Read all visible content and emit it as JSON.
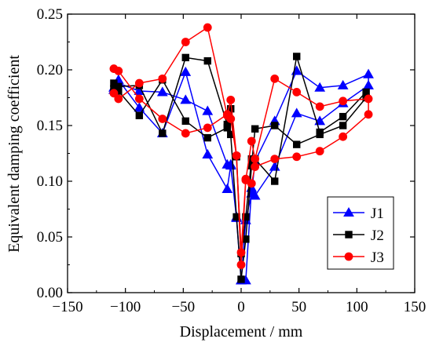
{
  "chart_data": {
    "type": "line",
    "xlabel": "Displacement / mm",
    "ylabel": "Equivalent damping coefficient",
    "xlim": [
      -150,
      150
    ],
    "ylim": [
      0.0,
      0.25
    ],
    "xticks": [
      -150,
      -100,
      -50,
      0,
      50,
      100,
      150
    ],
    "yticks": [
      "0.00",
      "0.05",
      "0.10",
      "0.15",
      "0.20",
      "0.25"
    ],
    "grid": false,
    "legend": "bottom-right",
    "series": [
      {
        "name": "J1",
        "marker": "triangle",
        "color": "#0000ff",
        "x": [
          -110,
          -106,
          -88,
          -68,
          -48,
          -29,
          -12,
          -9,
          -4,
          0,
          4,
          9,
          12,
          29,
          48,
          68,
          88,
          110,
          110,
          88,
          68,
          48,
          29,
          12,
          9,
          4,
          0,
          -4,
          -9,
          -12,
          -29,
          -48,
          -68,
          -88,
          -106,
          -110
        ],
        "y": [
          0.184,
          0.191,
          0.166,
          0.143,
          0.198,
          0.124,
          0.093,
          0.114,
          0.067,
          0.011,
          0.065,
          0.089,
          0.118,
          0.154,
          0.199,
          0.184,
          0.186,
          0.196,
          0.186,
          0.17,
          0.154,
          0.161,
          0.113,
          0.087,
          0.094,
          0.011,
          0.011,
          0.068,
          0.115,
          0.115,
          0.163,
          0.173,
          0.18,
          0.181,
          0.188,
          0.182
        ]
      },
      {
        "name": "J2",
        "marker": "square",
        "color": "#000000",
        "x": [
          -110,
          -106,
          -88,
          -68,
          -48,
          -29,
          -12,
          -9,
          -4,
          0,
          4,
          9,
          12,
          29,
          48,
          68,
          88,
          108,
          108,
          88,
          68,
          48,
          29,
          12,
          9,
          4,
          0,
          -4,
          -9,
          -12,
          -29,
          -48,
          -68,
          -88,
          -106,
          -110
        ],
        "y": [
          0.188,
          0.181,
          0.159,
          0.191,
          0.154,
          0.139,
          0.148,
          0.165,
          0.122,
          0.035,
          0.068,
          0.12,
          0.12,
          0.1,
          0.212,
          0.144,
          0.158,
          0.18,
          0.175,
          0.15,
          0.142,
          0.133,
          0.15,
          0.147,
          0.114,
          0.048,
          0.012,
          0.068,
          0.142,
          0.151,
          0.208,
          0.211,
          0.143,
          0.186,
          0.185,
          0.183
        ]
      },
      {
        "name": "J3",
        "marker": "circle",
        "color": "#ff0000",
        "x": [
          -110,
          -106,
          -88,
          -68,
          -48,
          -29,
          -12,
          -9,
          -4,
          0,
          4,
          9,
          12,
          29,
          48,
          68,
          88,
          110,
          110,
          88,
          68,
          48,
          29,
          12,
          9,
          4,
          0,
          -4,
          -9,
          -12,
          -29,
          -48,
          -68,
          -88,
          -106,
          -110
        ],
        "y": [
          0.201,
          0.199,
          0.174,
          0.156,
          0.143,
          0.148,
          0.16,
          0.156,
          0.123,
          0.025,
          0.101,
          0.136,
          0.12,
          0.192,
          0.18,
          0.167,
          0.172,
          0.174,
          0.16,
          0.14,
          0.127,
          0.122,
          0.12,
          0.113,
          0.098,
          0.102,
          0.036,
          0.123,
          0.173,
          0.159,
          0.238,
          0.225,
          0.192,
          0.188,
          0.174,
          0.179
        ]
      }
    ]
  }
}
